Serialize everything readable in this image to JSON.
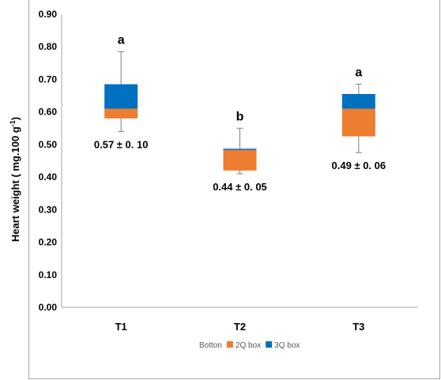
{
  "chart_data": {
    "type": "box",
    "ylabel": "Heart weight ( mg.100 g",
    "ylabel_sup": "-1",
    "ylabel_close": ")",
    "ylim": [
      0,
      0.9
    ],
    "yticks": [
      "0.00",
      "0.10",
      "0.20",
      "0.30",
      "0.40",
      "0.50",
      "0.60",
      "0.70",
      "0.80",
      "0.90"
    ],
    "categories": [
      "T1",
      "T2",
      "T3"
    ],
    "boxes": [
      {
        "category": "T1",
        "min": 0.54,
        "q1": 0.58,
        "median": 0.61,
        "q3": 0.685,
        "max": 0.785,
        "letter": "a",
        "mean_label": "0.57 ± 0. 10"
      },
      {
        "category": "T2",
        "min": 0.41,
        "q1": 0.42,
        "median": 0.485,
        "q3": 0.487,
        "max": 0.55,
        "letter": "b",
        "mean_label": "0.44 ± 0. 05"
      },
      {
        "category": "T3",
        "min": 0.475,
        "q1": 0.525,
        "median": 0.61,
        "q3": 0.655,
        "max": 0.685,
        "letter": "a",
        "mean_label": "0.49 ± 0. 06"
      }
    ],
    "legend": [
      {
        "name": "Botton",
        "color": ""
      },
      {
        "name": "2Q box",
        "color": "#ED7D31"
      },
      {
        "name": "3Q box",
        "color": "#0070C0"
      }
    ],
    "colors": {
      "q2": "#ED7D31",
      "q3": "#0070C0",
      "whisker": "#7f7f7f",
      "axis": "#a6a6a6"
    },
    "grid": false,
    "legend_position": "bottom"
  }
}
